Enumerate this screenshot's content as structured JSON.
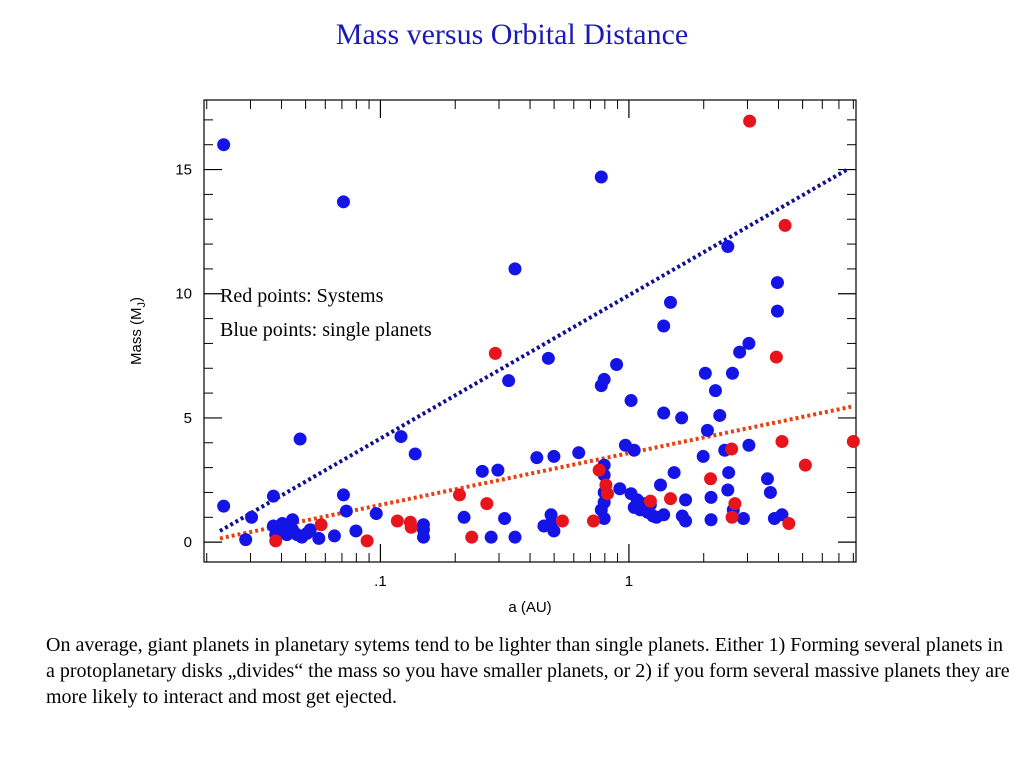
{
  "title": "Mass versus Orbital Distance",
  "caption": "On average, giant planets in planetary sytems tend to be lighter than single planets. Either 1) Forming several planets in a protoplanetary disks „divides“ the mass so you have smaller planets, or 2) if you form several massive planets they are more likely to interact and most get ejected.",
  "chart_data": {
    "type": "scatter",
    "title": "Mass versus Orbital Distance",
    "xlabel": "a (AU)",
    "ylabel": "Mass  (M",
    "ylabel_sub": "J",
    "ylabel_close": ")",
    "xscale": "log",
    "xlim": [
      0.0195,
      8.2
    ],
    "ylim": [
      -0.8,
      17.8
    ],
    "xticks": [
      {
        "value": 0.1,
        "label": ".1"
      },
      {
        "value": 1,
        "label": "1"
      }
    ],
    "yticks": [
      {
        "value": 0,
        "label": "0"
      },
      {
        "value": 5,
        "label": "5"
      },
      {
        "value": 10,
        "label": "10"
      },
      {
        "value": 15,
        "label": "15"
      }
    ],
    "annotations": [
      "Red points: Systems",
      "Blue points: single planets"
    ],
    "colors": {
      "systems": "#e8141c",
      "single": "#1414e6",
      "single_fit": "#101090",
      "systems_fit": "#e84010"
    },
    "series": [
      {
        "key": "single",
        "color": "#1414e6",
        "points": [
          [
            0.0234,
            16.0
          ],
          [
            0.0234,
            1.45
          ],
          [
            0.0287,
            0.1
          ],
          [
            0.0303,
            1.0
          ],
          [
            0.0371,
            1.85
          ],
          [
            0.0371,
            0.65
          ],
          [
            0.0379,
            0.3
          ],
          [
            0.0391,
            0.4
          ],
          [
            0.0403,
            0.75
          ],
          [
            0.042,
            0.3
          ],
          [
            0.0443,
            0.5
          ],
          [
            0.0443,
            0.9
          ],
          [
            0.0462,
            0.3
          ],
          [
            0.0475,
            4.15
          ],
          [
            0.0483,
            0.2
          ],
          [
            0.0506,
            0.35
          ],
          [
            0.0522,
            0.5
          ],
          [
            0.0565,
            0.15
          ],
          [
            0.0653,
            0.25
          ],
          [
            0.071,
            1.9
          ],
          [
            0.071,
            13.7
          ],
          [
            0.0729,
            1.25
          ],
          [
            0.0797,
            0.45
          ],
          [
            0.0962,
            1.15
          ],
          [
            0.121,
            4.25
          ],
          [
            0.138,
            3.55
          ],
          [
            0.149,
            0.7
          ],
          [
            0.149,
            0.5
          ],
          [
            0.149,
            0.2
          ],
          [
            0.217,
            1.0
          ],
          [
            0.257,
            2.85
          ],
          [
            0.279,
            0.2
          ],
          [
            0.297,
            2.9
          ],
          [
            0.316,
            0.95
          ],
          [
            0.328,
            6.5
          ],
          [
            0.348,
            11.0
          ],
          [
            0.348,
            0.2
          ],
          [
            0.426,
            3.4
          ],
          [
            0.455,
            0.65
          ],
          [
            0.474,
            7.4
          ],
          [
            0.486,
            1.1
          ],
          [
            0.499,
            3.45
          ],
          [
            0.499,
            0.45
          ],
          [
            0.486,
            0.75
          ],
          [
            0.628,
            3.6
          ],
          [
            0.774,
            14.7
          ],
          [
            0.774,
            6.3
          ],
          [
            0.795,
            6.55
          ],
          [
            0.795,
            2.0
          ],
          [
            0.795,
            1.6
          ],
          [
            0.795,
            3.1
          ],
          [
            0.795,
            0.95
          ],
          [
            0.795,
            2.7
          ],
          [
            0.774,
            1.3
          ],
          [
            0.892,
            7.15
          ],
          [
            0.919,
            2.15
          ],
          [
            0.968,
            3.9
          ],
          [
            1.02,
            5.7
          ],
          [
            1.02,
            1.95
          ],
          [
            1.05,
            1.4
          ],
          [
            1.05,
            3.7
          ],
          [
            1.08,
            1.7
          ],
          [
            1.11,
            1.3
          ],
          [
            1.15,
            1.55
          ],
          [
            1.19,
            1.2
          ],
          [
            1.22,
            1.5
          ],
          [
            1.25,
            1.05
          ],
          [
            1.29,
            1.0
          ],
          [
            1.34,
            2.3
          ],
          [
            1.38,
            8.7
          ],
          [
            1.38,
            5.2
          ],
          [
            1.38,
            1.1
          ],
          [
            1.47,
            9.65
          ],
          [
            1.52,
            2.8
          ],
          [
            1.63,
            5.0
          ],
          [
            1.64,
            1.05
          ],
          [
            1.69,
            1.7
          ],
          [
            1.69,
            0.85
          ],
          [
            1.99,
            3.45
          ],
          [
            2.03,
            6.8
          ],
          [
            2.07,
            4.5
          ],
          [
            2.14,
            0.9
          ],
          [
            2.14,
            1.8
          ],
          [
            2.23,
            6.1
          ],
          [
            2.32,
            5.1
          ],
          [
            2.43,
            3.7
          ],
          [
            2.5,
            11.9
          ],
          [
            2.5,
            2.1
          ],
          [
            2.52,
            2.8
          ],
          [
            2.61,
            6.8
          ],
          [
            2.63,
            1.3
          ],
          [
            2.79,
            7.65
          ],
          [
            2.89,
            0.95
          ],
          [
            3.04,
            8.0
          ],
          [
            3.04,
            3.9
          ],
          [
            3.61,
            2.55
          ],
          [
            3.71,
            2.0
          ],
          [
            3.85,
            0.95
          ],
          [
            3.96,
            9.3
          ],
          [
            3.96,
            10.45
          ],
          [
            4.13,
            1.1
          ]
        ]
      },
      {
        "key": "systems",
        "color": "#e8141c",
        "points": [
          [
            0.0379,
            0.05
          ],
          [
            0.0577,
            0.7
          ],
          [
            0.0884,
            0.05
          ],
          [
            0.117,
            0.85
          ],
          [
            0.132,
            0.8
          ],
          [
            0.133,
            0.6
          ],
          [
            0.208,
            1.9
          ],
          [
            0.233,
            0.2
          ],
          [
            0.268,
            1.55
          ],
          [
            0.29,
            7.6
          ],
          [
            0.54,
            0.85
          ],
          [
            0.72,
            0.85
          ],
          [
            0.759,
            2.9
          ],
          [
            0.808,
            2.3
          ],
          [
            0.82,
            1.95
          ],
          [
            1.22,
            1.65
          ],
          [
            1.47,
            1.75
          ],
          [
            2.13,
            2.55
          ],
          [
            2.59,
            3.75
          ],
          [
            2.6,
            1.0
          ],
          [
            2.67,
            1.55
          ],
          [
            3.06,
            16.95
          ],
          [
            3.92,
            7.45
          ],
          [
            4.13,
            4.05
          ],
          [
            4.25,
            12.75
          ],
          [
            4.4,
            0.75
          ],
          [
            5.13,
            3.1
          ],
          [
            8.0,
            4.05
          ]
        ]
      }
    ],
    "fit_lines": [
      {
        "key": "single_fit",
        "color": "#101090",
        "from": [
          0.0226,
          0.45
        ],
        "to": [
          7.55,
          15.0
        ]
      },
      {
        "key": "systems_fit",
        "color": "#e84010",
        "from": [
          0.0226,
          0.15
        ],
        "to": [
          7.84,
          5.45
        ]
      }
    ]
  }
}
